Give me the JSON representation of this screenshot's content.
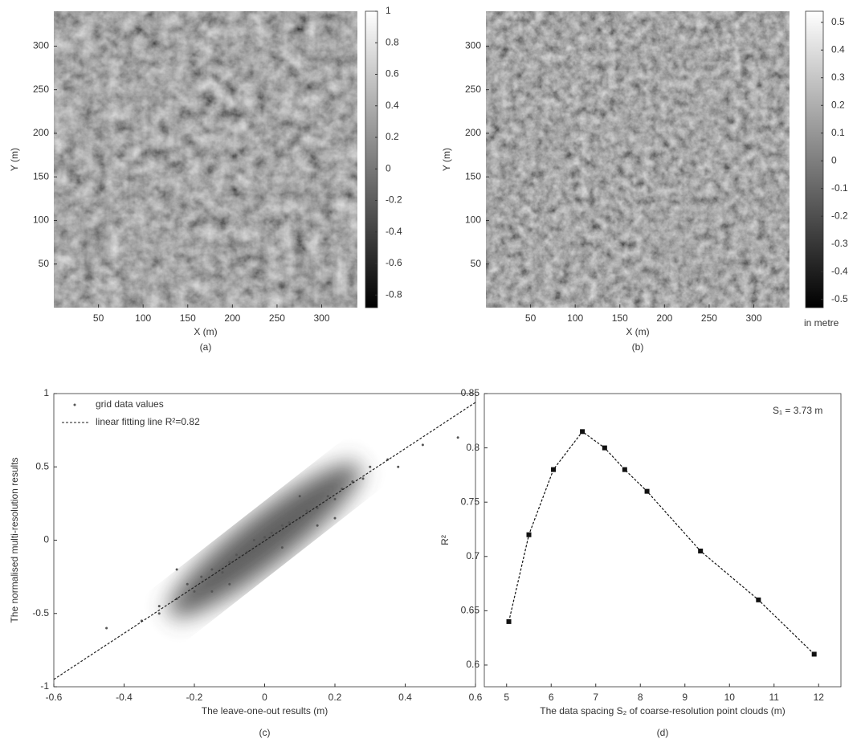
{
  "chart_data": [
    {
      "type": "heatmap",
      "xlabel": "X (m)",
      "ylabel": "Y (m)",
      "caption": "(a)",
      "xlim": [
        0,
        340
      ],
      "ylim": [
        0,
        340
      ],
      "xticks": [
        50,
        100,
        150,
        200,
        250,
        300
      ],
      "yticks": [
        50,
        100,
        150,
        200,
        250,
        300
      ],
      "colorbar": {
        "lim": [
          -0.88,
          1
        ],
        "ticks": [
          1,
          0.8,
          0.6,
          0.4,
          0.2,
          0,
          -0.2,
          -0.4,
          -0.6,
          -0.8
        ]
      }
    },
    {
      "type": "heatmap",
      "xlabel": "X (m)",
      "ylabel": "Y (m)",
      "caption": "(b)",
      "xlim": [
        0,
        340
      ],
      "ylim": [
        0,
        340
      ],
      "xticks": [
        50,
        100,
        150,
        200,
        250,
        300
      ],
      "yticks": [
        50,
        100,
        150,
        200,
        250,
        300
      ],
      "colorbar": {
        "lim": [
          -0.53,
          0.54
        ],
        "ticks": [
          0.5,
          0.4,
          0.3,
          0.2,
          0.1,
          0,
          -0.1,
          -0.2,
          -0.3,
          -0.4,
          -0.5
        ],
        "label": "in metre"
      }
    },
    {
      "type": "scatter",
      "xlabel": "The leave-one-out results (m)",
      "ylabel": "The normalised multi-resolution results",
      "caption": "(c)",
      "xlim": [
        -0.6,
        0.6
      ],
      "ylim": [
        -1,
        1
      ],
      "xticks": [
        -0.6,
        -0.4,
        -0.2,
        0,
        0.2,
        0.4,
        0.6
      ],
      "yticks": [
        -1,
        -0.5,
        0,
        0.5,
        1
      ],
      "legend": "upper left",
      "series": [
        {
          "name": "grid data values",
          "color": "#555555",
          "style": "points",
          "x": [
            -0.35,
            -0.3,
            -0.25,
            -0.22,
            -0.2,
            -0.18,
            -0.15,
            -0.12,
            -0.1,
            -0.08,
            -0.05,
            -0.03,
            0,
            0.02,
            0.05,
            0.07,
            0.1,
            0.12,
            0.15,
            0.18,
            0.2,
            0.22,
            0.25,
            0.28,
            0.3,
            0.35,
            -0.45,
            0.45,
            0.55,
            -0.25,
            0.1,
            -0.1,
            0.05,
            0.15,
            -0.15,
            0.38,
            -0.3,
            0.2
          ],
          "values": [
            -0.55,
            -0.5,
            -0.4,
            -0.3,
            -0.35,
            -0.25,
            -0.2,
            -0.22,
            -0.15,
            -0.1,
            -0.08,
            0,
            0.02,
            0.05,
            0.1,
            0.12,
            0.15,
            0.2,
            0.22,
            0.3,
            0.28,
            0.35,
            0.4,
            0.42,
            0.5,
            0.55,
            -0.6,
            0.65,
            0.7,
            -0.2,
            0.3,
            -0.3,
            -0.05,
            0.1,
            -0.35,
            0.5,
            -0.45,
            0.15
          ]
        },
        {
          "name": "linear fitting line R²=0.82",
          "color": "#222222",
          "style": "dashed",
          "x": [
            -0.6,
            0.6
          ],
          "values": [
            -0.95,
            0.94
          ]
        }
      ]
    },
    {
      "type": "line",
      "xlabel": "The data spacing S₂ of coarse-resolution point clouds (m)",
      "ylabel": "R²",
      "caption": "(d)",
      "annotation": "S₁ = 3.73 m",
      "xlim": [
        4.5,
        12.5
      ],
      "ylim": [
        0.58,
        0.85
      ],
      "xticks": [
        5,
        6,
        7,
        8,
        9,
        10,
        11,
        12
      ],
      "yticks": [
        0.6,
        0.65,
        0.7,
        0.75,
        0.8,
        0.85
      ],
      "series": [
        {
          "color": "#111111",
          "style": "dashed-markers",
          "x": [
            5.05,
            5.5,
            6.05,
            6.7,
            7.2,
            7.65,
            8.15,
            9.35,
            10.65,
            11.9
          ],
          "values": [
            0.64,
            0.72,
            0.78,
            0.815,
            0.8,
            0.78,
            0.76,
            0.705,
            0.66,
            0.61
          ]
        }
      ]
    }
  ]
}
